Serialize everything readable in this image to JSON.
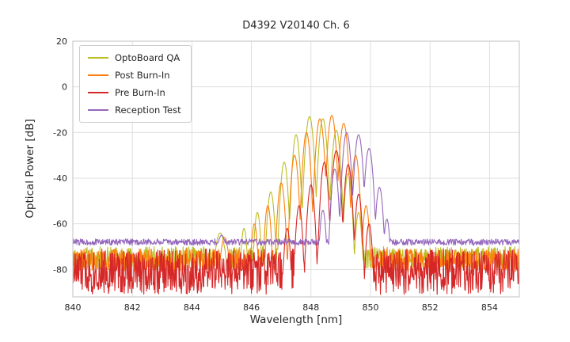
{
  "chart_data": {
    "type": "line",
    "title": "D4392 V20140 Ch. 6",
    "xlabel": "Wavelength [nm]",
    "ylabel": "Optical Power [dB]",
    "xlim": [
      840,
      855
    ],
    "ylim": [
      -92,
      20
    ],
    "x_ticks": [
      840,
      842,
      844,
      846,
      848,
      850,
      852,
      854
    ],
    "y_ticks": [
      20,
      0,
      -20,
      -40,
      -60,
      -80
    ],
    "grid": true,
    "legend_position": "upper-left",
    "series": [
      {
        "name": "OptoBoard QA",
        "color": "#bcbd22",
        "noise_base": -75,
        "noise_amp": 5,
        "seed": 11,
        "peaks": [
          [
            844.95,
            -64,
            0.18
          ],
          [
            845.75,
            -62,
            0.1
          ],
          [
            846.2,
            -55,
            0.1
          ],
          [
            846.65,
            -46,
            0.11
          ],
          [
            847.1,
            -33,
            0.11
          ],
          [
            847.5,
            -21,
            0.11
          ],
          [
            847.95,
            -13,
            0.12
          ],
          [
            848.4,
            -14,
            0.12
          ],
          [
            848.85,
            -19,
            0.12
          ],
          [
            849.25,
            -38,
            0.11
          ],
          [
            849.6,
            -55,
            0.1
          ]
        ]
      },
      {
        "name": "Post Burn-In",
        "color": "#ff7f0e",
        "noise_base": -76,
        "noise_amp": 5,
        "seed": 22,
        "peaks": [
          [
            845.1,
            -66,
            0.15
          ],
          [
            846.1,
            -60,
            0.1
          ],
          [
            846.55,
            -52,
            0.1
          ],
          [
            847.0,
            -42,
            0.11
          ],
          [
            847.45,
            -30,
            0.11
          ],
          [
            847.85,
            -20,
            0.11
          ],
          [
            848.3,
            -14,
            0.12
          ],
          [
            848.7,
            -12.5,
            0.12
          ],
          [
            849.1,
            -16,
            0.12
          ],
          [
            849.5,
            -30,
            0.11
          ],
          [
            849.85,
            -52,
            0.1
          ]
        ]
      },
      {
        "name": "Pre Burn-In",
        "color": "#d62728",
        "noise_base": -81,
        "noise_amp": 10,
        "seed": 33,
        "peaks": [
          [
            847.2,
            -62,
            0.1
          ],
          [
            847.6,
            -52,
            0.1
          ],
          [
            848.0,
            -43,
            0.11
          ],
          [
            848.45,
            -33,
            0.11
          ],
          [
            848.85,
            -28,
            0.12
          ],
          [
            849.25,
            -34,
            0.11
          ],
          [
            849.6,
            -47,
            0.1
          ],
          [
            849.95,
            -60,
            0.1
          ]
        ]
      },
      {
        "name": "Reception Test",
        "color": "#9467bd",
        "noise_base": -68,
        "noise_amp": 1.4,
        "seed": 44,
        "peaks": [
          [
            845.0,
            -65,
            0.2
          ],
          [
            848.4,
            -54,
            0.1
          ],
          [
            848.8,
            -36,
            0.11
          ],
          [
            849.2,
            -20,
            0.12
          ],
          [
            849.6,
            -21,
            0.12
          ],
          [
            849.95,
            -27,
            0.12
          ],
          [
            850.3,
            -44,
            0.11
          ],
          [
            850.55,
            -58,
            0.1
          ]
        ]
      }
    ]
  }
}
